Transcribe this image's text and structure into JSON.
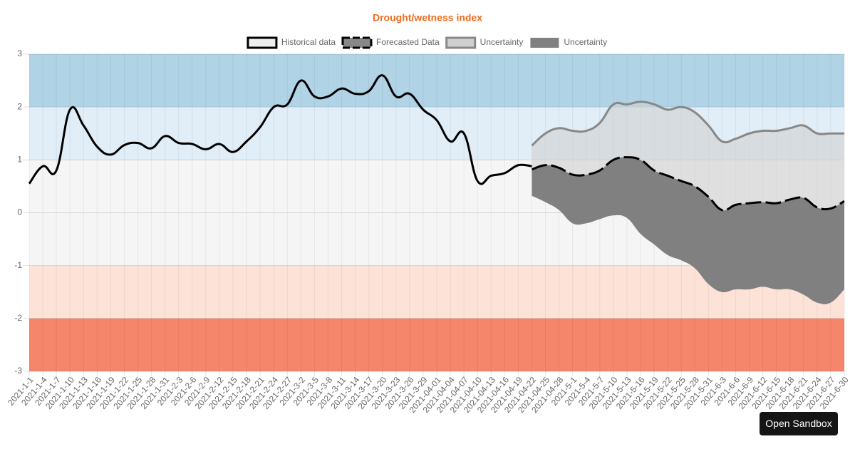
{
  "chart_data": {
    "type": "line",
    "title": "Drought/wetness index",
    "categories": [
      "2021-1-1",
      "2021-1-4",
      "2021-1-7",
      "2021-1-10",
      "2021-1-13",
      "2021-1-16",
      "2021-1-19",
      "2021-1-22",
      "2021-1-25",
      "2021-1-28",
      "2021-1-31",
      "2021-2-3",
      "2021-2-6",
      "2021-2-9",
      "2021-2-12",
      "2021-2-15",
      "2021-2-18",
      "2021-2-21",
      "2021-2-24",
      "2021-2-27",
      "2021-3-2",
      "2021-3-5",
      "2021-3-8",
      "2021-3-11",
      "2021-3-14",
      "2021-3-17",
      "2021-3-20",
      "2021-3-23",
      "2021-3-26",
      "2021-3-29",
      "2021-04-01",
      "2021-04-04",
      "2021-04-07",
      "2021-04-10",
      "2021-04-13",
      "2021-04-16",
      "2021-04-19",
      "2021-04-22",
      "2021-04-25",
      "2021-04-28",
      "2021-5-1",
      "2021-5-4",
      "2021-5-7",
      "2021-5-10",
      "2021-5-13",
      "2021-5-16",
      "2021-5-19",
      "2021-5-22",
      "2021-5-25",
      "2021-5-28",
      "2021-5-31",
      "2021-6-3",
      "2021-6-6",
      "2021-6-9",
      "2021-6-12",
      "2021-6-15",
      "2021-6-18",
      "2021-6-21",
      "2021-6-24",
      "2021-6-27",
      "2021-6-30"
    ],
    "series": [
      {
        "name": "Historical data",
        "color": "#000000",
        "fill_color": "#eeeeee",
        "dash": false,
        "fill": false,
        "values": [
          0.55,
          0.88,
          0.8,
          1.95,
          1.65,
          1.25,
          1.1,
          1.28,
          1.32,
          1.22,
          1.45,
          1.32,
          1.3,
          1.2,
          1.3,
          1.15,
          1.35,
          1.62,
          2.0,
          2.05,
          2.5,
          2.2,
          2.2,
          2.35,
          2.25,
          2.3,
          2.6,
          2.2,
          2.25,
          1.95,
          1.75,
          1.35,
          1.5,
          0.6,
          0.7,
          0.75,
          0.9,
          0.88,
          null,
          null,
          null,
          null,
          null,
          null,
          null,
          null,
          null,
          null,
          null,
          null,
          null,
          null,
          null,
          null,
          null,
          null,
          null,
          null,
          null,
          null,
          null
        ]
      },
      {
        "name": "Forecasted Data",
        "color": "#000000",
        "fill_color": "#888888",
        "dash": true,
        "fill": false,
        "values": [
          null,
          null,
          null,
          null,
          null,
          null,
          null,
          null,
          null,
          null,
          null,
          null,
          null,
          null,
          null,
          null,
          null,
          null,
          null,
          null,
          null,
          null,
          null,
          null,
          null,
          null,
          null,
          null,
          null,
          null,
          null,
          null,
          null,
          null,
          null,
          null,
          null,
          0.82,
          0.9,
          0.85,
          0.72,
          0.72,
          0.8,
          1.0,
          1.05,
          1.0,
          0.8,
          0.7,
          0.6,
          0.5,
          0.3,
          0.05,
          0.15,
          0.18,
          0.2,
          0.18,
          0.25,
          0.28,
          0.1,
          0.08,
          0.22
        ]
      },
      {
        "name": "Uncertainty",
        "color": "#888888",
        "fill_color": "#d0d0d0",
        "dash": false,
        "fill": true,
        "values": [
          null,
          null,
          null,
          null,
          null,
          null,
          null,
          null,
          null,
          null,
          null,
          null,
          null,
          null,
          null,
          null,
          null,
          null,
          null,
          null,
          null,
          null,
          null,
          null,
          null,
          null,
          null,
          null,
          null,
          null,
          null,
          null,
          null,
          null,
          null,
          null,
          null,
          1.27,
          1.5,
          1.6,
          1.55,
          1.55,
          1.7,
          2.05,
          2.05,
          2.1,
          2.05,
          1.95,
          2.0,
          1.9,
          1.65,
          1.35,
          1.4,
          1.5,
          1.55,
          1.55,
          1.6,
          1.65,
          1.5,
          1.5,
          1.5
        ]
      },
      {
        "name": "Uncertainty",
        "color": "#808080",
        "fill_color": "#808080",
        "dash": false,
        "fill": true,
        "values": [
          null,
          null,
          null,
          null,
          null,
          null,
          null,
          null,
          null,
          null,
          null,
          null,
          null,
          null,
          null,
          null,
          null,
          null,
          null,
          null,
          null,
          null,
          null,
          null,
          null,
          null,
          null,
          null,
          null,
          null,
          null,
          null,
          null,
          null,
          null,
          null,
          null,
          0.32,
          0.2,
          0.05,
          -0.2,
          -0.2,
          -0.12,
          -0.05,
          -0.1,
          -0.4,
          -0.6,
          -0.8,
          -0.9,
          -1.05,
          -1.35,
          -1.5,
          -1.45,
          -1.45,
          -1.4,
          -1.45,
          -1.45,
          -1.55,
          -1.7,
          -1.7,
          -1.45
        ]
      }
    ],
    "bands": [
      {
        "from": 2,
        "to": 3,
        "color": "#b0d4e6"
      },
      {
        "from": 1,
        "to": 2,
        "color": "#e1edf7"
      },
      {
        "from": -1,
        "to": 1,
        "color": "#f5f5f5"
      },
      {
        "from": -2,
        "to": -1,
        "color": "#fde3d7"
      },
      {
        "from": -3,
        "to": -2,
        "color": "#f5856b"
      }
    ],
    "ylim": [
      -3,
      3
    ],
    "yticks": [
      -3,
      -2,
      -1,
      0,
      1,
      2,
      3
    ],
    "grid": true,
    "legend": "top",
    "title_color": "#f26b1d"
  },
  "ui": {
    "button": "Open Sandbox"
  }
}
